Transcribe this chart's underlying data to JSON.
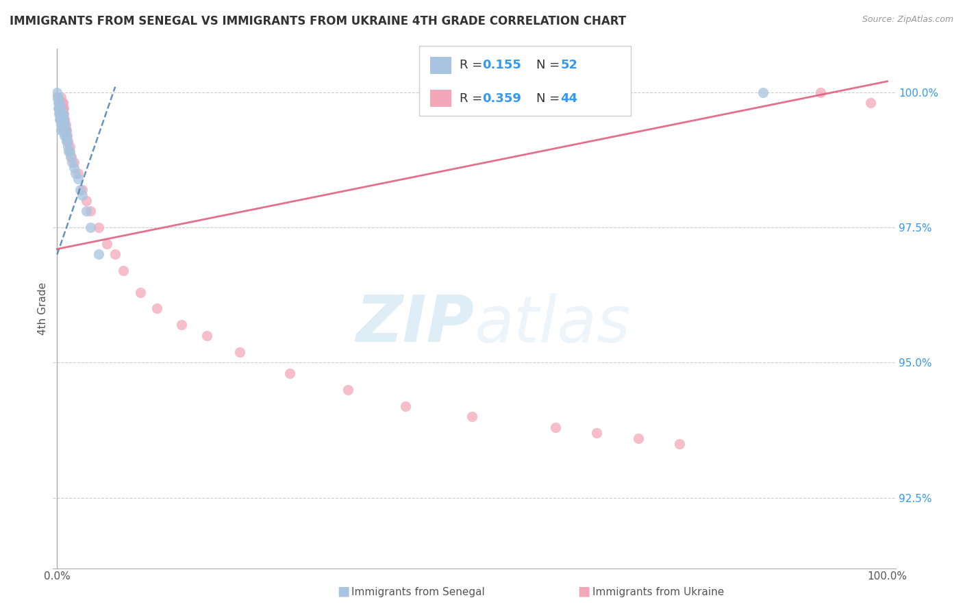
{
  "title": "IMMIGRANTS FROM SENEGAL VS IMMIGRANTS FROM UKRAINE 4TH GRADE CORRELATION CHART",
  "source_text": "Source: ZipAtlas.com",
  "ylabel": "4th Grade",
  "xlim": [
    -0.005,
    1.01
  ],
  "ylim": [
    0.912,
    1.008
  ],
  "ytick_labels": [
    "92.5%",
    "95.0%",
    "97.5%",
    "100.0%"
  ],
  "ytick_values": [
    0.925,
    0.95,
    0.975,
    1.0
  ],
  "xtick_labels": [
    "0.0%",
    "100.0%"
  ],
  "xtick_values": [
    0.0,
    1.0
  ],
  "legend_r1": "R = 0.155",
  "legend_n1": "N = 52",
  "legend_r2": "R = 0.359",
  "legend_n2": "N = 44",
  "watermark": "ZIPatlas",
  "senegal_color": "#a8c4e0",
  "ukraine_color": "#f4a7b9",
  "senegal_line_color": "#5588bb",
  "ukraine_line_color": "#e06080",
  "bottom_legend_senegal": "Immigrants from Senegal",
  "bottom_legend_ukraine": "Immigrants from Ukraine",
  "senegal_x": [
    0.0,
    0.0,
    0.001,
    0.001,
    0.001,
    0.002,
    0.002,
    0.002,
    0.003,
    0.003,
    0.003,
    0.003,
    0.004,
    0.004,
    0.004,
    0.005,
    0.005,
    0.005,
    0.005,
    0.005,
    0.006,
    0.006,
    0.006,
    0.006,
    0.007,
    0.007,
    0.007,
    0.008,
    0.008,
    0.008,
    0.009,
    0.009,
    0.009,
    0.01,
    0.01,
    0.011,
    0.011,
    0.012,
    0.013,
    0.014,
    0.015,
    0.016,
    0.018,
    0.02,
    0.022,
    0.025,
    0.028,
    0.03,
    0.035,
    0.04,
    0.05,
    0.85
  ],
  "senegal_y": [
    1.0,
    0.999,
    0.999,
    0.998,
    0.997,
    0.998,
    0.997,
    0.996,
    0.998,
    0.997,
    0.996,
    0.995,
    0.997,
    0.996,
    0.995,
    0.997,
    0.996,
    0.995,
    0.994,
    0.993,
    0.996,
    0.995,
    0.994,
    0.993,
    0.996,
    0.995,
    0.994,
    0.995,
    0.994,
    0.993,
    0.994,
    0.993,
    0.992,
    0.993,
    0.992,
    0.992,
    0.991,
    0.991,
    0.99,
    0.989,
    0.989,
    0.988,
    0.987,
    0.986,
    0.985,
    0.984,
    0.982,
    0.981,
    0.978,
    0.975,
    0.97,
    1.0
  ],
  "ukraine_x": [
    0.005,
    0.006,
    0.006,
    0.007,
    0.007,
    0.007,
    0.007,
    0.007,
    0.008,
    0.008,
    0.008,
    0.009,
    0.009,
    0.01,
    0.01,
    0.011,
    0.012,
    0.013,
    0.015,
    0.017,
    0.02,
    0.025,
    0.03,
    0.035,
    0.04,
    0.05,
    0.06,
    0.07,
    0.08,
    0.1,
    0.12,
    0.15,
    0.18,
    0.22,
    0.28,
    0.35,
    0.42,
    0.5,
    0.6,
    0.65,
    0.7,
    0.75,
    0.92,
    0.98
  ],
  "ukraine_y": [
    0.999,
    0.998,
    0.997,
    0.998,
    0.997,
    0.996,
    0.995,
    0.994,
    0.997,
    0.996,
    0.995,
    0.995,
    0.994,
    0.994,
    0.993,
    0.993,
    0.992,
    0.991,
    0.99,
    0.988,
    0.987,
    0.985,
    0.982,
    0.98,
    0.978,
    0.975,
    0.972,
    0.97,
    0.967,
    0.963,
    0.96,
    0.957,
    0.955,
    0.952,
    0.948,
    0.945,
    0.942,
    0.94,
    0.938,
    0.937,
    0.936,
    0.935,
    1.0,
    0.998
  ],
  "sen_line_x": [
    0.0,
    0.07
  ],
  "sen_line_y": [
    0.97,
    1.001
  ],
  "ukr_line_x": [
    0.0,
    1.0
  ],
  "ukr_line_y": [
    0.971,
    1.002
  ]
}
